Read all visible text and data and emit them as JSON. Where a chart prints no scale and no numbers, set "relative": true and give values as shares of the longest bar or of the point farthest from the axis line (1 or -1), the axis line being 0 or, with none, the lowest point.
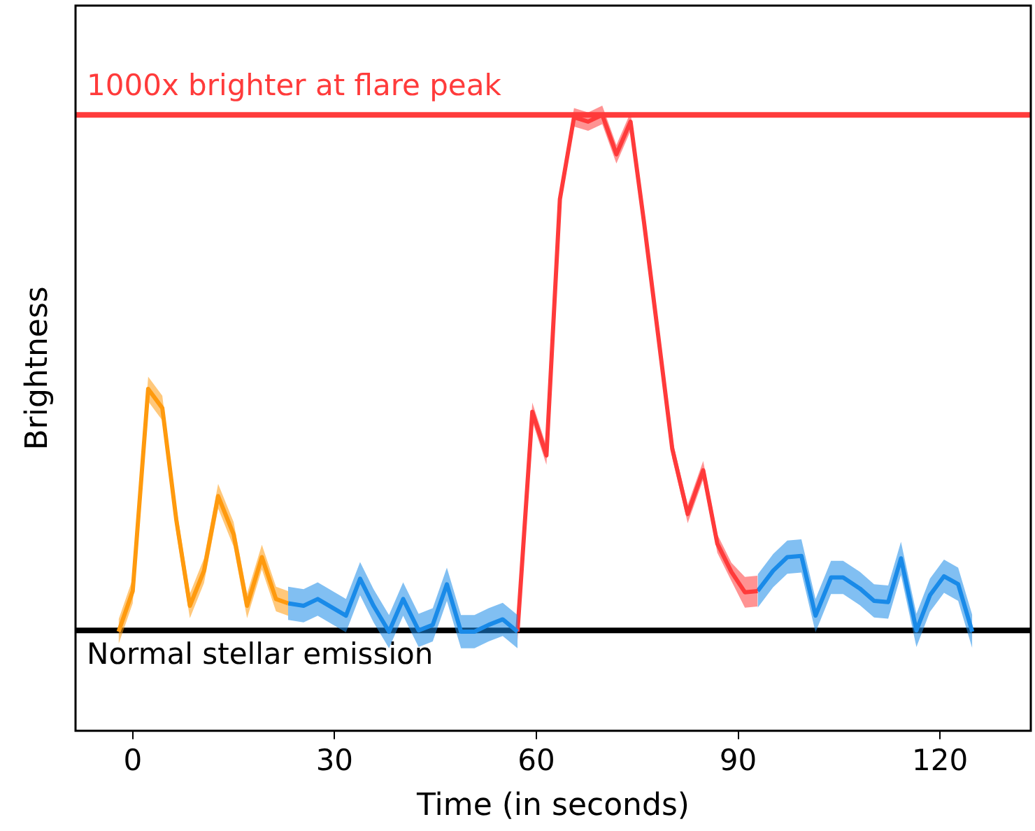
{
  "chart_data": {
    "type": "line",
    "relative": true,
    "xlabel": "Time (in seconds)",
    "ylabel": "Brightness",
    "xlim": [
      -8.5,
      133.5
    ],
    "xticks": [
      0,
      30,
      60,
      90,
      120
    ],
    "tick_labels": "x",
    "grid": false,
    "legend": false,
    "marker": "none",
    "line_style": "solid",
    "series": [
      {
        "color": "#ff9a0e",
        "x": [
          -2.1,
          0,
          2.3,
          4.4,
          6.5,
          8.5,
          10.6,
          12.7,
          15,
          17,
          19.2,
          21.3,
          23.1
        ],
        "values": [
          0.161,
          0.227,
          0.555,
          0.524,
          0.341,
          0.203,
          0.26,
          0.381,
          0.319,
          0.203,
          0.282,
          0.214,
          0.207
        ],
        "lower": [
          0.141,
          0.207,
          0.535,
          0.504,
          0.321,
          0.183,
          0.24,
          0.361,
          0.299,
          0.183,
          0.262,
          0.194,
          0.187
        ],
        "upper": [
          0.181,
          0.247,
          0.575,
          0.544,
          0.361,
          0.223,
          0.28,
          0.401,
          0.339,
          0.223,
          0.302,
          0.234,
          0.227
        ]
      },
      {
        "color": "#1a8ae8",
        "x": [
          23.1,
          25.4,
          27.5,
          31.7,
          33.8,
          35.8,
          38.1,
          40.2,
          42.5,
          44.6,
          46.7,
          48.8,
          50.8,
          52.9,
          55,
          57.2
        ],
        "values": [
          0.207,
          0.203,
          0.214,
          0.187,
          0.247,
          0.203,
          0.161,
          0.214,
          0.163,
          0.172,
          0.238,
          0.161,
          0.161,
          0.172,
          0.181,
          0.161
        ],
        "lower": [
          0.18,
          0.176,
          0.187,
          0.16,
          0.22,
          0.176,
          0.134,
          0.187,
          0.136,
          0.145,
          0.211,
          0.134,
          0.134,
          0.145,
          0.154,
          0.134
        ],
        "upper": [
          0.234,
          0.23,
          0.241,
          0.214,
          0.274,
          0.23,
          0.188,
          0.241,
          0.19,
          0.199,
          0.265,
          0.188,
          0.188,
          0.199,
          0.208,
          0.188
        ]
      },
      {
        "color": "#ff3b3b",
        "x": [
          57.2,
          59.4,
          61.5,
          63.5,
          65.6,
          67.7,
          69.8,
          71.9,
          74,
          76,
          78.1,
          80.2,
          82.5,
          84.8,
          86.9,
          89,
          91,
          92.9
        ],
        "values": [
          0.161,
          0.518,
          0.447,
          0.863,
          0.996,
          0.989,
          1.0,
          0.936,
          0.989,
          0.826,
          0.643,
          0.458,
          0.352,
          0.423,
          0.304,
          0.258,
          0.225,
          0.227
        ],
        "lower": [
          0.146,
          0.503,
          0.432,
          0.848,
          0.981,
          0.974,
          0.985,
          0.921,
          0.974,
          0.811,
          0.628,
          0.443,
          0.337,
          0.408,
          0.289,
          0.243,
          0.2,
          0.202
        ],
        "upper": [
          0.176,
          0.533,
          0.462,
          0.878,
          1.011,
          1.004,
          1.015,
          0.951,
          1.004,
          0.841,
          0.658,
          0.473,
          0.367,
          0.438,
          0.319,
          0.273,
          0.25,
          0.252
        ]
      },
      {
        "color": "#1a8ae8",
        "x": [
          92.9,
          95.2,
          97.3,
          99.4,
          101.5,
          103.8,
          105.6,
          108.1,
          110.2,
          112.3,
          114.2,
          116.5,
          118.5,
          120.6,
          122.7,
          124.8
        ],
        "values": [
          0.227,
          0.26,
          0.282,
          0.284,
          0.187,
          0.249,
          0.249,
          0.231,
          0.211,
          0.209,
          0.28,
          0.163,
          0.22,
          0.251,
          0.238,
          0.161
        ],
        "lower": [
          0.2,
          0.233,
          0.255,
          0.257,
          0.16,
          0.222,
          0.222,
          0.204,
          0.184,
          0.182,
          0.253,
          0.136,
          0.193,
          0.224,
          0.211,
          0.134
        ],
        "upper": [
          0.254,
          0.287,
          0.309,
          0.311,
          0.214,
          0.276,
          0.276,
          0.258,
          0.238,
          0.236,
          0.307,
          0.19,
          0.247,
          0.278,
          0.265,
          0.188
        ]
      }
    ],
    "ref_lines": [
      {
        "axis": "y",
        "value": 0.163,
        "label": "Normal stellar emission",
        "color": "#000000"
      },
      {
        "axis": "y",
        "value": 1.0,
        "label": "1000x brighter at flare peak",
        "color": "#ff3b3b"
      }
    ]
  }
}
